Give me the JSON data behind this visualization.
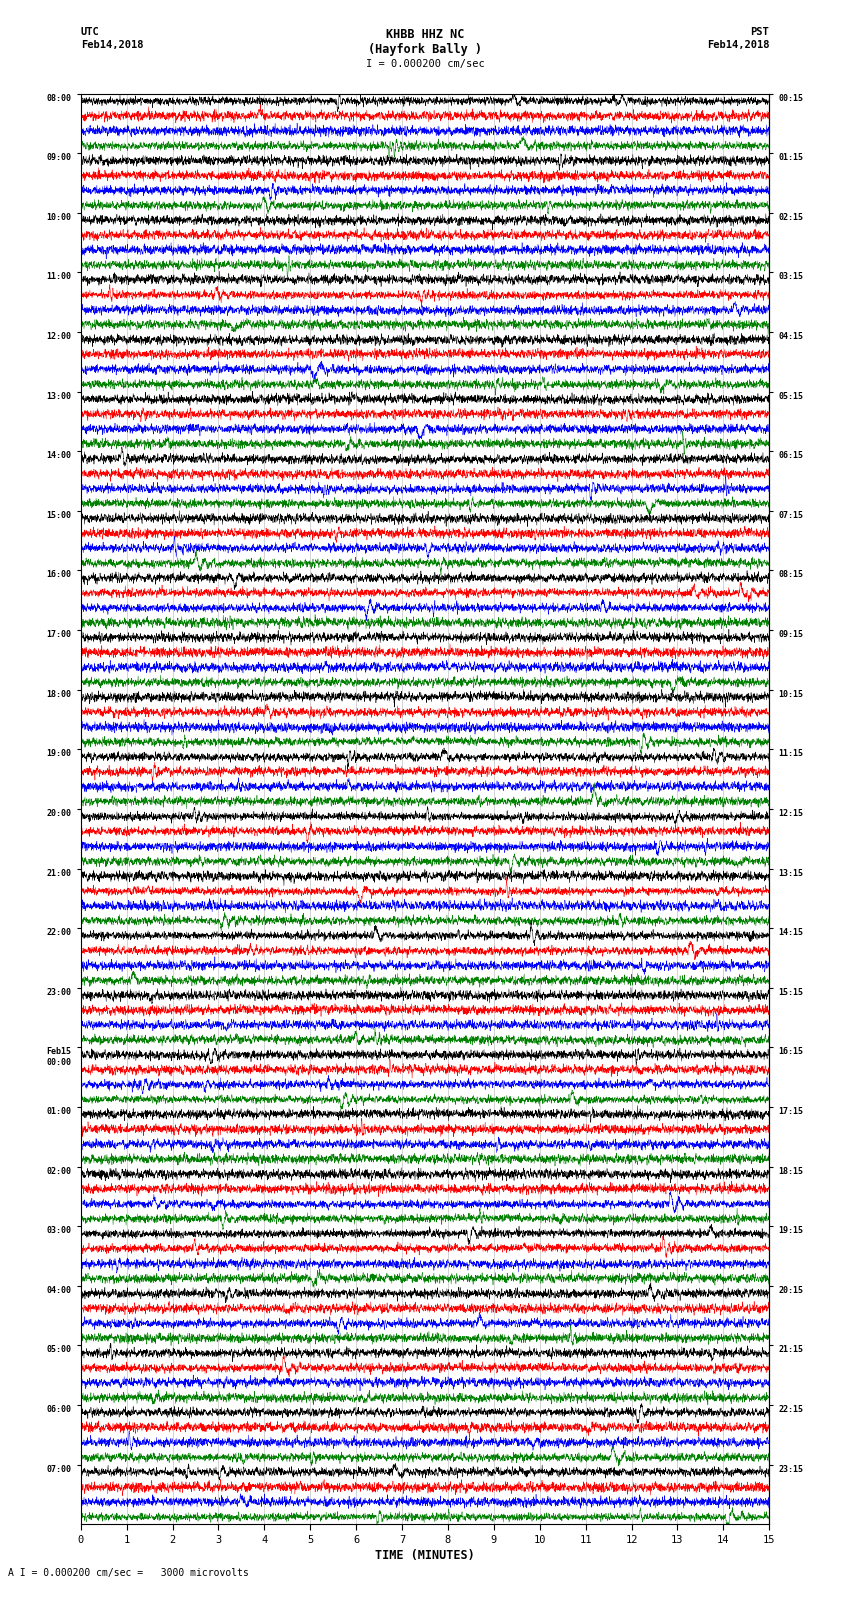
{
  "title_line1": "KHBB HHZ NC",
  "title_line2": "(Hayfork Bally )",
  "scale_label": "I = 0.000200 cm/sec",
  "bottom_label": "A I = 0.000200 cm/sec =   3000 microvolts",
  "xlabel": "TIME (MINUTES)",
  "utc_top": "UTC",
  "utc_date": "Feb14,2018",
  "pst_top": "PST",
  "pst_date": "Feb14,2018",
  "left_times": [
    "08:00",
    "09:00",
    "10:00",
    "11:00",
    "12:00",
    "13:00",
    "14:00",
    "15:00",
    "16:00",
    "17:00",
    "18:00",
    "19:00",
    "20:00",
    "21:00",
    "22:00",
    "23:00",
    "Feb15\n00:00",
    "01:00",
    "02:00",
    "03:00",
    "04:00",
    "05:00",
    "06:00",
    "07:00"
  ],
  "right_times": [
    "00:15",
    "01:15",
    "02:15",
    "03:15",
    "04:15",
    "05:15",
    "06:15",
    "07:15",
    "08:15",
    "09:15",
    "10:15",
    "11:15",
    "12:15",
    "13:15",
    "14:15",
    "15:15",
    "16:15",
    "17:15",
    "18:15",
    "19:15",
    "20:15",
    "21:15",
    "22:15",
    "23:15"
  ],
  "colors": [
    "black",
    "red",
    "blue",
    "green"
  ],
  "n_rows": 24,
  "traces_per_row": 4,
  "bg_color": "white",
  "fig_width": 8.5,
  "fig_height": 16.13,
  "dpi": 100,
  "xmin": 0,
  "xmax": 15,
  "xticks": [
    0,
    1,
    2,
    3,
    4,
    5,
    6,
    7,
    8,
    9,
    10,
    11,
    12,
    13,
    14,
    15
  ]
}
